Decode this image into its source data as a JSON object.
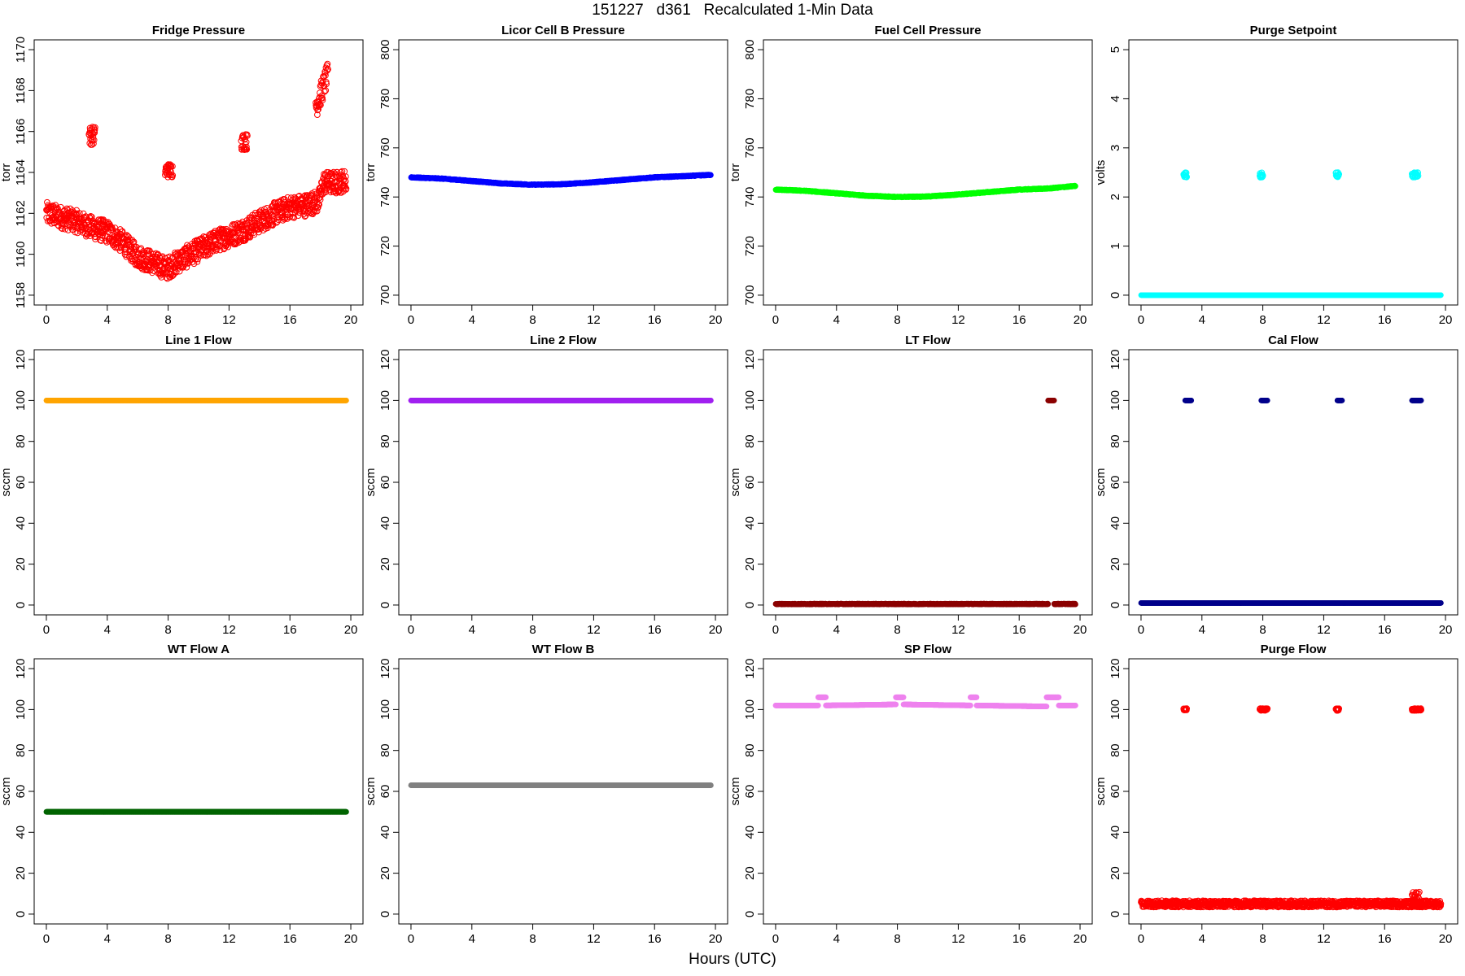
{
  "figure": {
    "title": "151227   d361   Recalculated 1-Min Data",
    "xlabel": "Hours (UTC)"
  },
  "chart_data": [
    {
      "type": "scatter",
      "title": "Fridge Pressure",
      "ylabel": "torr",
      "color": "#ff0000",
      "marker": "open-circle",
      "xlim": [
        0,
        20
      ],
      "xticks": [
        0,
        4,
        8,
        12,
        16,
        20
      ],
      "ylim": [
        1158,
        1170
      ],
      "yticks": [
        1158,
        1160,
        1162,
        1164,
        1166,
        1168,
        1170
      ],
      "series": [
        {
          "x": [
            0,
            1,
            2,
            3,
            4,
            5,
            6,
            7,
            7.9,
            8.1,
            9,
            10,
            11,
            12,
            13,
            14,
            15,
            16,
            17,
            17.9,
            18.2,
            19,
            19.7
          ],
          "y": [
            1162.0,
            1161.8,
            1161.6,
            1161.3,
            1161.1,
            1160.6,
            1159.9,
            1159.6,
            1159.3,
            1159.4,
            1159.8,
            1160.2,
            1160.6,
            1160.9,
            1161.2,
            1161.6,
            1162.0,
            1162.3,
            1162.4,
            1162.6,
            1163.5,
            1163.5,
            1163.6
          ],
          "spread": 0.55
        },
        {
          "x": [
            2.8,
            3.2
          ],
          "y": [
            1165.8,
            1165.8
          ],
          "spread": 0.45
        },
        {
          "x": [
            7.8,
            8.3
          ],
          "y": [
            1164.1,
            1164.1
          ],
          "spread": 0.35
        },
        {
          "x": [
            12.8,
            13.2
          ],
          "y": [
            1165.5,
            1165.5
          ],
          "spread": 0.4
        },
        {
          "x": [
            17.7,
            18.5
          ],
          "y": [
            1167.2,
            1168.8
          ],
          "spread": 0.6
        }
      ]
    },
    {
      "type": "scatter",
      "title": "Licor Cell B Pressure",
      "ylabel": "torr",
      "color": "#0000ff",
      "marker": "filled-circle",
      "xlim": [
        0,
        20
      ],
      "xticks": [
        0,
        4,
        8,
        12,
        16,
        20
      ],
      "ylim": [
        700,
        800
      ],
      "yticks": [
        700,
        720,
        740,
        760,
        780,
        800
      ],
      "series": [
        {
          "x": [
            0,
            2,
            4,
            6,
            8,
            10,
            12,
            14,
            16,
            18,
            19.7
          ],
          "y": [
            748,
            747.5,
            746.5,
            745.5,
            745,
            745.2,
            746,
            747,
            748,
            748.5,
            749
          ],
          "spread": 0.2
        }
      ]
    },
    {
      "type": "scatter",
      "title": "Fuel Cell Pressure",
      "ylabel": "torr",
      "color": "#00ff00",
      "marker": "filled-circle",
      "xlim": [
        0,
        20
      ],
      "xticks": [
        0,
        4,
        8,
        12,
        16,
        20
      ],
      "ylim": [
        700,
        800
      ],
      "yticks": [
        700,
        720,
        740,
        760,
        780,
        800
      ],
      "series": [
        {
          "x": [
            0,
            2,
            4,
            6,
            8,
            10,
            12,
            14,
            16,
            18,
            19.7
          ],
          "y": [
            743,
            742.5,
            741.5,
            740.5,
            740,
            740.2,
            741,
            742,
            743,
            743.5,
            744.5
          ],
          "spread": 0.2
        }
      ]
    },
    {
      "type": "scatter",
      "title": "Purge Setpoint",
      "ylabel": "volts",
      "color": "#00ffff",
      "marker": "filled-circle",
      "xlim": [
        0,
        20
      ],
      "xticks": [
        0,
        4,
        8,
        12,
        16,
        20
      ],
      "ylim": [
        0,
        5
      ],
      "yticks": [
        0,
        1,
        2,
        3,
        4,
        5
      ],
      "series": [
        {
          "x": [
            0,
            19.7
          ],
          "y": [
            0,
            0
          ],
          "spread": 0
        },
        {
          "x": [
            2.8,
            3.0
          ],
          "y": [
            2.45,
            2.45
          ],
          "spread": 0.05,
          "marker": "open-circle"
        },
        {
          "x": [
            7.8,
            8.0
          ],
          "y": [
            2.45,
            2.45
          ],
          "spread": 0.05,
          "marker": "open-circle"
        },
        {
          "x": [
            12.8,
            13.0
          ],
          "y": [
            2.45,
            2.45
          ],
          "spread": 0.05,
          "marker": "open-circle"
        },
        {
          "x": [
            17.8,
            18.2
          ],
          "y": [
            2.45,
            2.45
          ],
          "spread": 0.05,
          "marker": "open-circle"
        }
      ]
    },
    {
      "type": "scatter",
      "title": "Line 1 Flow",
      "ylabel": "sccm",
      "color": "#ffa500",
      "marker": "filled-circle",
      "xlim": [
        0,
        20
      ],
      "xticks": [
        0,
        4,
        8,
        12,
        16,
        20
      ],
      "ylim": [
        0,
        120
      ],
      "yticks": [
        0,
        20,
        40,
        60,
        80,
        100,
        120
      ],
      "series": [
        {
          "x": [
            0,
            19.7
          ],
          "y": [
            100,
            100
          ],
          "spread": 0
        }
      ]
    },
    {
      "type": "scatter",
      "title": "Line 2 Flow",
      "ylabel": "sccm",
      "color": "#a020f0",
      "marker": "filled-circle",
      "xlim": [
        0,
        20
      ],
      "xticks": [
        0,
        4,
        8,
        12,
        16,
        20
      ],
      "ylim": [
        0,
        120
      ],
      "yticks": [
        0,
        20,
        40,
        60,
        80,
        100,
        120
      ],
      "series": [
        {
          "x": [
            0,
            19.7
          ],
          "y": [
            100,
            100
          ],
          "spread": 0
        }
      ]
    },
    {
      "type": "scatter",
      "title": "LT Flow",
      "ylabel": "sccm",
      "color": "#8b0000",
      "marker": "filled-circle",
      "xlim": [
        0,
        20
      ],
      "xticks": [
        0,
        4,
        8,
        12,
        16,
        20
      ],
      "ylim": [
        0,
        120
      ],
      "yticks": [
        0,
        20,
        40,
        60,
        80,
        100,
        120
      ],
      "series": [
        {
          "x": [
            0,
            17.9
          ],
          "y": [
            0.5,
            0.5
          ],
          "spread": 0.2
        },
        {
          "x": [
            18.3,
            19.7
          ],
          "y": [
            0.5,
            0.5
          ],
          "spread": 0.2
        },
        {
          "x": [
            17.9,
            18.3
          ],
          "y": [
            100,
            100
          ],
          "spread": 0
        }
      ]
    },
    {
      "type": "scatter",
      "title": "Cal Flow",
      "ylabel": "sccm",
      "color": "#00008b",
      "marker": "filled-circle",
      "xlim": [
        0,
        20
      ],
      "xticks": [
        0,
        4,
        8,
        12,
        16,
        20
      ],
      "ylim": [
        0,
        120
      ],
      "yticks": [
        0,
        20,
        40,
        60,
        80,
        100,
        120
      ],
      "series": [
        {
          "x": [
            0,
            19.7
          ],
          "y": [
            1,
            1
          ],
          "spread": 0
        },
        {
          "x": [
            2.9,
            3.3
          ],
          "y": [
            100,
            100
          ],
          "spread": 0
        },
        {
          "x": [
            7.9,
            8.3
          ],
          "y": [
            100,
            100
          ],
          "spread": 0
        },
        {
          "x": [
            12.9,
            13.2
          ],
          "y": [
            100,
            100
          ],
          "spread": 0
        },
        {
          "x": [
            17.8,
            18.4
          ],
          "y": [
            100,
            100
          ],
          "spread": 0
        }
      ]
    },
    {
      "type": "scatter",
      "title": "WT Flow A",
      "ylabel": "sccm",
      "color": "#006400",
      "marker": "filled-circle",
      "xlim": [
        0,
        20
      ],
      "xticks": [
        0,
        4,
        8,
        12,
        16,
        20
      ],
      "ylim": [
        0,
        120
      ],
      "yticks": [
        0,
        20,
        40,
        60,
        80,
        100,
        120
      ],
      "series": [
        {
          "x": [
            0,
            19.7
          ],
          "y": [
            50,
            50
          ],
          "spread": 0
        }
      ]
    },
    {
      "type": "scatter",
      "title": "WT Flow B",
      "ylabel": "sccm",
      "color": "#808080",
      "marker": "filled-circle",
      "xlim": [
        0,
        20
      ],
      "xticks": [
        0,
        4,
        8,
        12,
        16,
        20
      ],
      "ylim": [
        0,
        120
      ],
      "yticks": [
        0,
        20,
        40,
        60,
        80,
        100,
        120
      ],
      "series": [
        {
          "x": [
            0,
            19.7
          ],
          "y": [
            63,
            63
          ],
          "spread": 0
        }
      ]
    },
    {
      "type": "scatter",
      "title": "SP Flow",
      "ylabel": "sccm",
      "color": "#ee82ee",
      "marker": "filled-circle",
      "xlim": [
        0,
        20
      ],
      "xticks": [
        0,
        4,
        8,
        12,
        16,
        20
      ],
      "ylim": [
        0,
        120
      ],
      "yticks": [
        0,
        20,
        40,
        60,
        80,
        100,
        120
      ],
      "series": [
        {
          "x": [
            0,
            2.8
          ],
          "y": [
            102,
            102
          ],
          "spread": 0
        },
        {
          "x": [
            2.8,
            3.3
          ],
          "y": [
            106,
            106
          ],
          "spread": 0
        },
        {
          "x": [
            3.3,
            7.9
          ],
          "y": [
            102,
            102.5
          ],
          "spread": 0
        },
        {
          "x": [
            7.9,
            8.4
          ],
          "y": [
            106,
            106
          ],
          "spread": 0
        },
        {
          "x": [
            8.4,
            12.8
          ],
          "y": [
            102.5,
            102
          ],
          "spread": 0
        },
        {
          "x": [
            12.8,
            13.2
          ],
          "y": [
            106,
            106
          ],
          "spread": 0
        },
        {
          "x": [
            13.2,
            17.8
          ],
          "y": [
            102,
            101.5
          ],
          "spread": 0
        },
        {
          "x": [
            17.8,
            18.6
          ],
          "y": [
            106,
            106
          ],
          "spread": 0
        },
        {
          "x": [
            18.6,
            19.7
          ],
          "y": [
            102,
            102
          ],
          "spread": 0
        }
      ]
    },
    {
      "type": "scatter",
      "title": "Purge Flow",
      "ylabel": "sccm",
      "color": "#ff0000",
      "marker": "open-circle",
      "xlim": [
        0,
        20
      ],
      "xticks": [
        0,
        4,
        8,
        12,
        16,
        20
      ],
      "ylim": [
        0,
        120
      ],
      "yticks": [
        0,
        20,
        40,
        60,
        80,
        100,
        120
      ],
      "series": [
        {
          "x": [
            0,
            19.7
          ],
          "y": [
            5,
            5
          ],
          "spread": 1.6
        },
        {
          "x": [
            17.8,
            18.3
          ],
          "y": [
            8,
            8
          ],
          "spread": 3
        },
        {
          "x": [
            2.8,
            3.0
          ],
          "y": [
            100,
            100
          ],
          "spread": 0.5
        },
        {
          "x": [
            7.8,
            8.3
          ],
          "y": [
            100,
            100
          ],
          "spread": 0.5
        },
        {
          "x": [
            12.8,
            13.0
          ],
          "y": [
            100,
            100
          ],
          "spread": 0.5
        },
        {
          "x": [
            17.8,
            18.4
          ],
          "y": [
            100,
            100
          ],
          "spread": 0.5
        }
      ]
    }
  ]
}
